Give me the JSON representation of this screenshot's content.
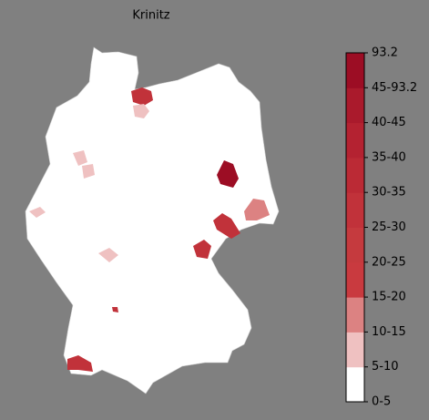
{
  "title": "Krinitz",
  "legend": {
    "labels": [
      "0-5",
      "5-10",
      "10-15",
      "15-20",
      "20-25",
      "25-30",
      "30-35",
      "35-40",
      "40-45",
      "45-93.2",
      "93.2"
    ],
    "colors": [
      "#ffffff",
      "#efc1c1",
      "#dc8282",
      "#c93a3f",
      "#c53a3e",
      "#c1323a",
      "#bb2a35",
      "#b42231",
      "#aa1a2c",
      "#9c0d24"
    ]
  }
}
